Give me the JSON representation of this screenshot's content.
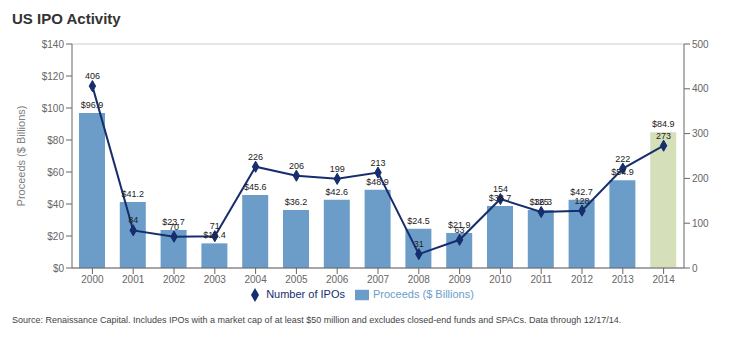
{
  "chart_data": {
    "type": "bar",
    "title": "US IPO Activity",
    "ylabel": "Proceeds ($ Billions)",
    "categories": [
      "2000",
      "2001",
      "2002",
      "2003",
      "2004",
      "2005",
      "2006",
      "2007",
      "2008",
      "2009",
      "2010",
      "2011",
      "2012",
      "2013",
      "2014"
    ],
    "series": [
      {
        "name": "Proceeds ($ Billions)",
        "type": "bar",
        "colors": [
          "#6b9dc8",
          "#6b9dc8",
          "#6b9dc8",
          "#6b9dc8",
          "#6b9dc8",
          "#6b9dc8",
          "#6b9dc8",
          "#6b9dc8",
          "#6b9dc8",
          "#6b9dc8",
          "#6b9dc8",
          "#6b9dc8",
          "#6b9dc8",
          "#6b9dc8",
          "#d5e0bb"
        ],
        "values": [
          96.9,
          41.2,
          23.7,
          15.4,
          45.6,
          36.2,
          42.6,
          48.9,
          24.5,
          21.9,
          38.7,
          36.3,
          42.7,
          54.9,
          84.9
        ],
        "value_labels": [
          "$96.9",
          "$41.2",
          "$23.7",
          "$15.4",
          "$45.6",
          "$36.2",
          "$42.6",
          "$48.9",
          "$24.5",
          "$21.9",
          "$38.7",
          "$36.3",
          "$42.7",
          "$54.9",
          "$84.9"
        ],
        "data_labels": true
      },
      {
        "name": "Number of IPOs",
        "type": "line",
        "color": "#162d6e",
        "marker": "diamond",
        "axis": "y2",
        "values": [
          406,
          84,
          70,
          71,
          226,
          206,
          199,
          213,
          31,
          63,
          154,
          125,
          128,
          222,
          273
        ],
        "data_labels": true
      }
    ],
    "ylim": [
      0,
      140
    ],
    "yticks": [
      {
        "value": 0,
        "label": "$0"
      },
      {
        "value": 20,
        "label": "$20"
      },
      {
        "value": 40,
        "label": "$40"
      },
      {
        "value": 60,
        "label": "$60"
      },
      {
        "value": 80,
        "label": "$80"
      },
      {
        "value": 100,
        "label": "$100"
      },
      {
        "value": 120,
        "label": "$120"
      },
      {
        "value": 140,
        "label": "$140"
      }
    ],
    "y2lim": [
      0,
      500
    ],
    "y2ticks": [
      0,
      100,
      200,
      300,
      400,
      500
    ],
    "grid": true,
    "legend": "bottom",
    "source": "Source: Renaissance Capital. Includes IPOs with a market cap of at least $50 million and excludes closed-end funds and SPACs. Data through 12/17/14."
  }
}
